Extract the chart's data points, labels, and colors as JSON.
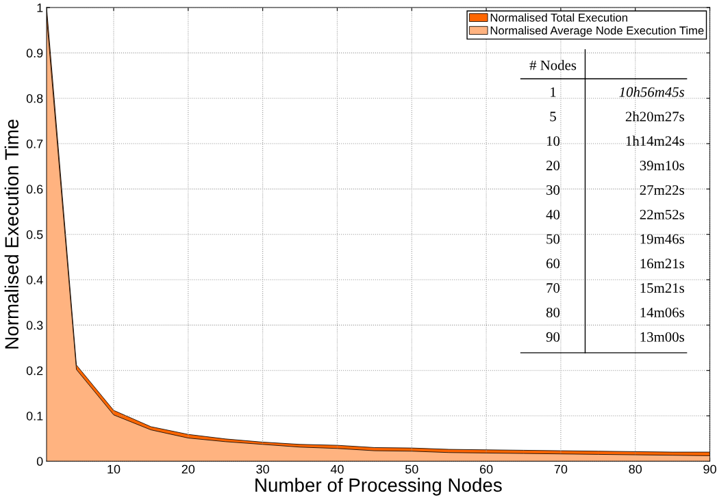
{
  "chart_data": {
    "type": "area",
    "xlabel": "Number of Processing Nodes",
    "ylabel": "Normalised Execution Time",
    "x": [
      1,
      5,
      10,
      15,
      20,
      25,
      30,
      35,
      40,
      45,
      50,
      55,
      60,
      65,
      70,
      75,
      80,
      85,
      90
    ],
    "series": [
      {
        "name": "Normalised Total Execution",
        "color": "#ff6600",
        "values": [
          1,
          0.212,
          0.112,
          0.076,
          0.059,
          0.049,
          0.042,
          0.037,
          0.035,
          0.03,
          0.029,
          0.026,
          0.025,
          0.024,
          0.023,
          0.022,
          0.021,
          0.02,
          0.02
        ]
      },
      {
        "name": "Normalised Average Node Execution Time",
        "color": "#ffb380",
        "values": [
          0.98,
          0.202,
          0.102,
          0.069,
          0.051,
          0.043,
          0.037,
          0.031,
          0.028,
          0.023,
          0.022,
          0.019,
          0.018,
          0.017,
          0.016,
          0.015,
          0.014,
          0.013,
          0.012
        ]
      }
    ],
    "xlim": [
      1,
      90
    ],
    "xticks": [
      10,
      20,
      30,
      40,
      50,
      60,
      70,
      80,
      90
    ],
    "ylim": [
      0,
      1
    ],
    "yticks": [
      0,
      0.1,
      0.2,
      0.3,
      0.4,
      0.5,
      0.6,
      0.7,
      0.8,
      0.9,
      1
    ],
    "grid": true,
    "legend": "top right",
    "annotations": [
      "# Nodes",
      "1",
      "10h56m45s",
      "5",
      "2h20m27s",
      "10",
      "1h14m24s",
      "20",
      "39m10s",
      "30",
      "27m22s",
      "40",
      "22m52s",
      "50",
      "19m46s",
      "60",
      "16m21s",
      "70",
      "15m21s",
      "80",
      "14m06s",
      "90",
      "13m00s"
    ]
  }
}
